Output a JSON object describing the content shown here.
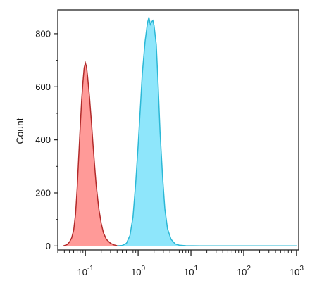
{
  "chart_data": {
    "type": "area",
    "title": "",
    "xlabel": "",
    "ylabel": "Count",
    "x_scale": "log",
    "xlim": [
      0.03,
      1100
    ],
    "ylim": [
      -15,
      890
    ],
    "grid": false,
    "legend": "none",
    "y_ticks": [
      0,
      200,
      400,
      600,
      800
    ],
    "y_tick_labels": [
      "0",
      "200",
      "400",
      "600",
      "800"
    ],
    "x_ticks": [
      0.1,
      1,
      10,
      100,
      1000
    ],
    "x_tick_labels": [
      {
        "base": "10",
        "exp": "-1"
      },
      {
        "base": "10",
        "exp": "0"
      },
      {
        "base": "10",
        "exp": "1"
      },
      {
        "base": "10",
        "exp": "2"
      },
      {
        "base": "10",
        "exp": "3"
      }
    ],
    "series": [
      {
        "stroke": "#b22a2a",
        "fill": "#ff9a98",
        "points": [
          [
            0.038,
            0
          ],
          [
            0.045,
            5
          ],
          [
            0.05,
            15
          ],
          [
            0.055,
            30
          ],
          [
            0.06,
            60
          ],
          [
            0.065,
            120
          ],
          [
            0.07,
            220
          ],
          [
            0.075,
            340
          ],
          [
            0.08,
            450
          ],
          [
            0.085,
            550
          ],
          [
            0.09,
            620
          ],
          [
            0.095,
            672
          ],
          [
            0.1,
            690
          ],
          [
            0.105,
            675
          ],
          [
            0.11,
            640
          ],
          [
            0.12,
            560
          ],
          [
            0.13,
            470
          ],
          [
            0.14,
            380
          ],
          [
            0.15,
            300
          ],
          [
            0.16,
            230
          ],
          [
            0.18,
            140
          ],
          [
            0.2,
            85
          ],
          [
            0.22,
            50
          ],
          [
            0.25,
            25
          ],
          [
            0.3,
            10
          ],
          [
            0.35,
            4
          ],
          [
            0.4,
            1
          ],
          [
            0.5,
            0
          ]
        ]
      },
      {
        "stroke": "#2bb8d6",
        "fill": "#8ee6fb",
        "points": [
          [
            0.4,
            0
          ],
          [
            0.5,
            2
          ],
          [
            0.6,
            10
          ],
          [
            0.7,
            40
          ],
          [
            0.8,
            110
          ],
          [
            0.9,
            240
          ],
          [
            1.0,
            380
          ],
          [
            1.1,
            520
          ],
          [
            1.2,
            650
          ],
          [
            1.35,
            770
          ],
          [
            1.5,
            840
          ],
          [
            1.6,
            862
          ],
          [
            1.7,
            835
          ],
          [
            1.8,
            845
          ],
          [
            1.9,
            850
          ],
          [
            2.0,
            830
          ],
          [
            2.2,
            760
          ],
          [
            2.4,
            600
          ],
          [
            2.6,
            430
          ],
          [
            2.9,
            260
          ],
          [
            3.2,
            140
          ],
          [
            3.6,
            65
          ],
          [
            4.2,
            25
          ],
          [
            5.0,
            8
          ],
          [
            6.0,
            3
          ],
          [
            8.0,
            1
          ],
          [
            15,
            0.5
          ],
          [
            100,
            0.5
          ],
          [
            1000,
            0.5
          ]
        ]
      }
    ]
  }
}
